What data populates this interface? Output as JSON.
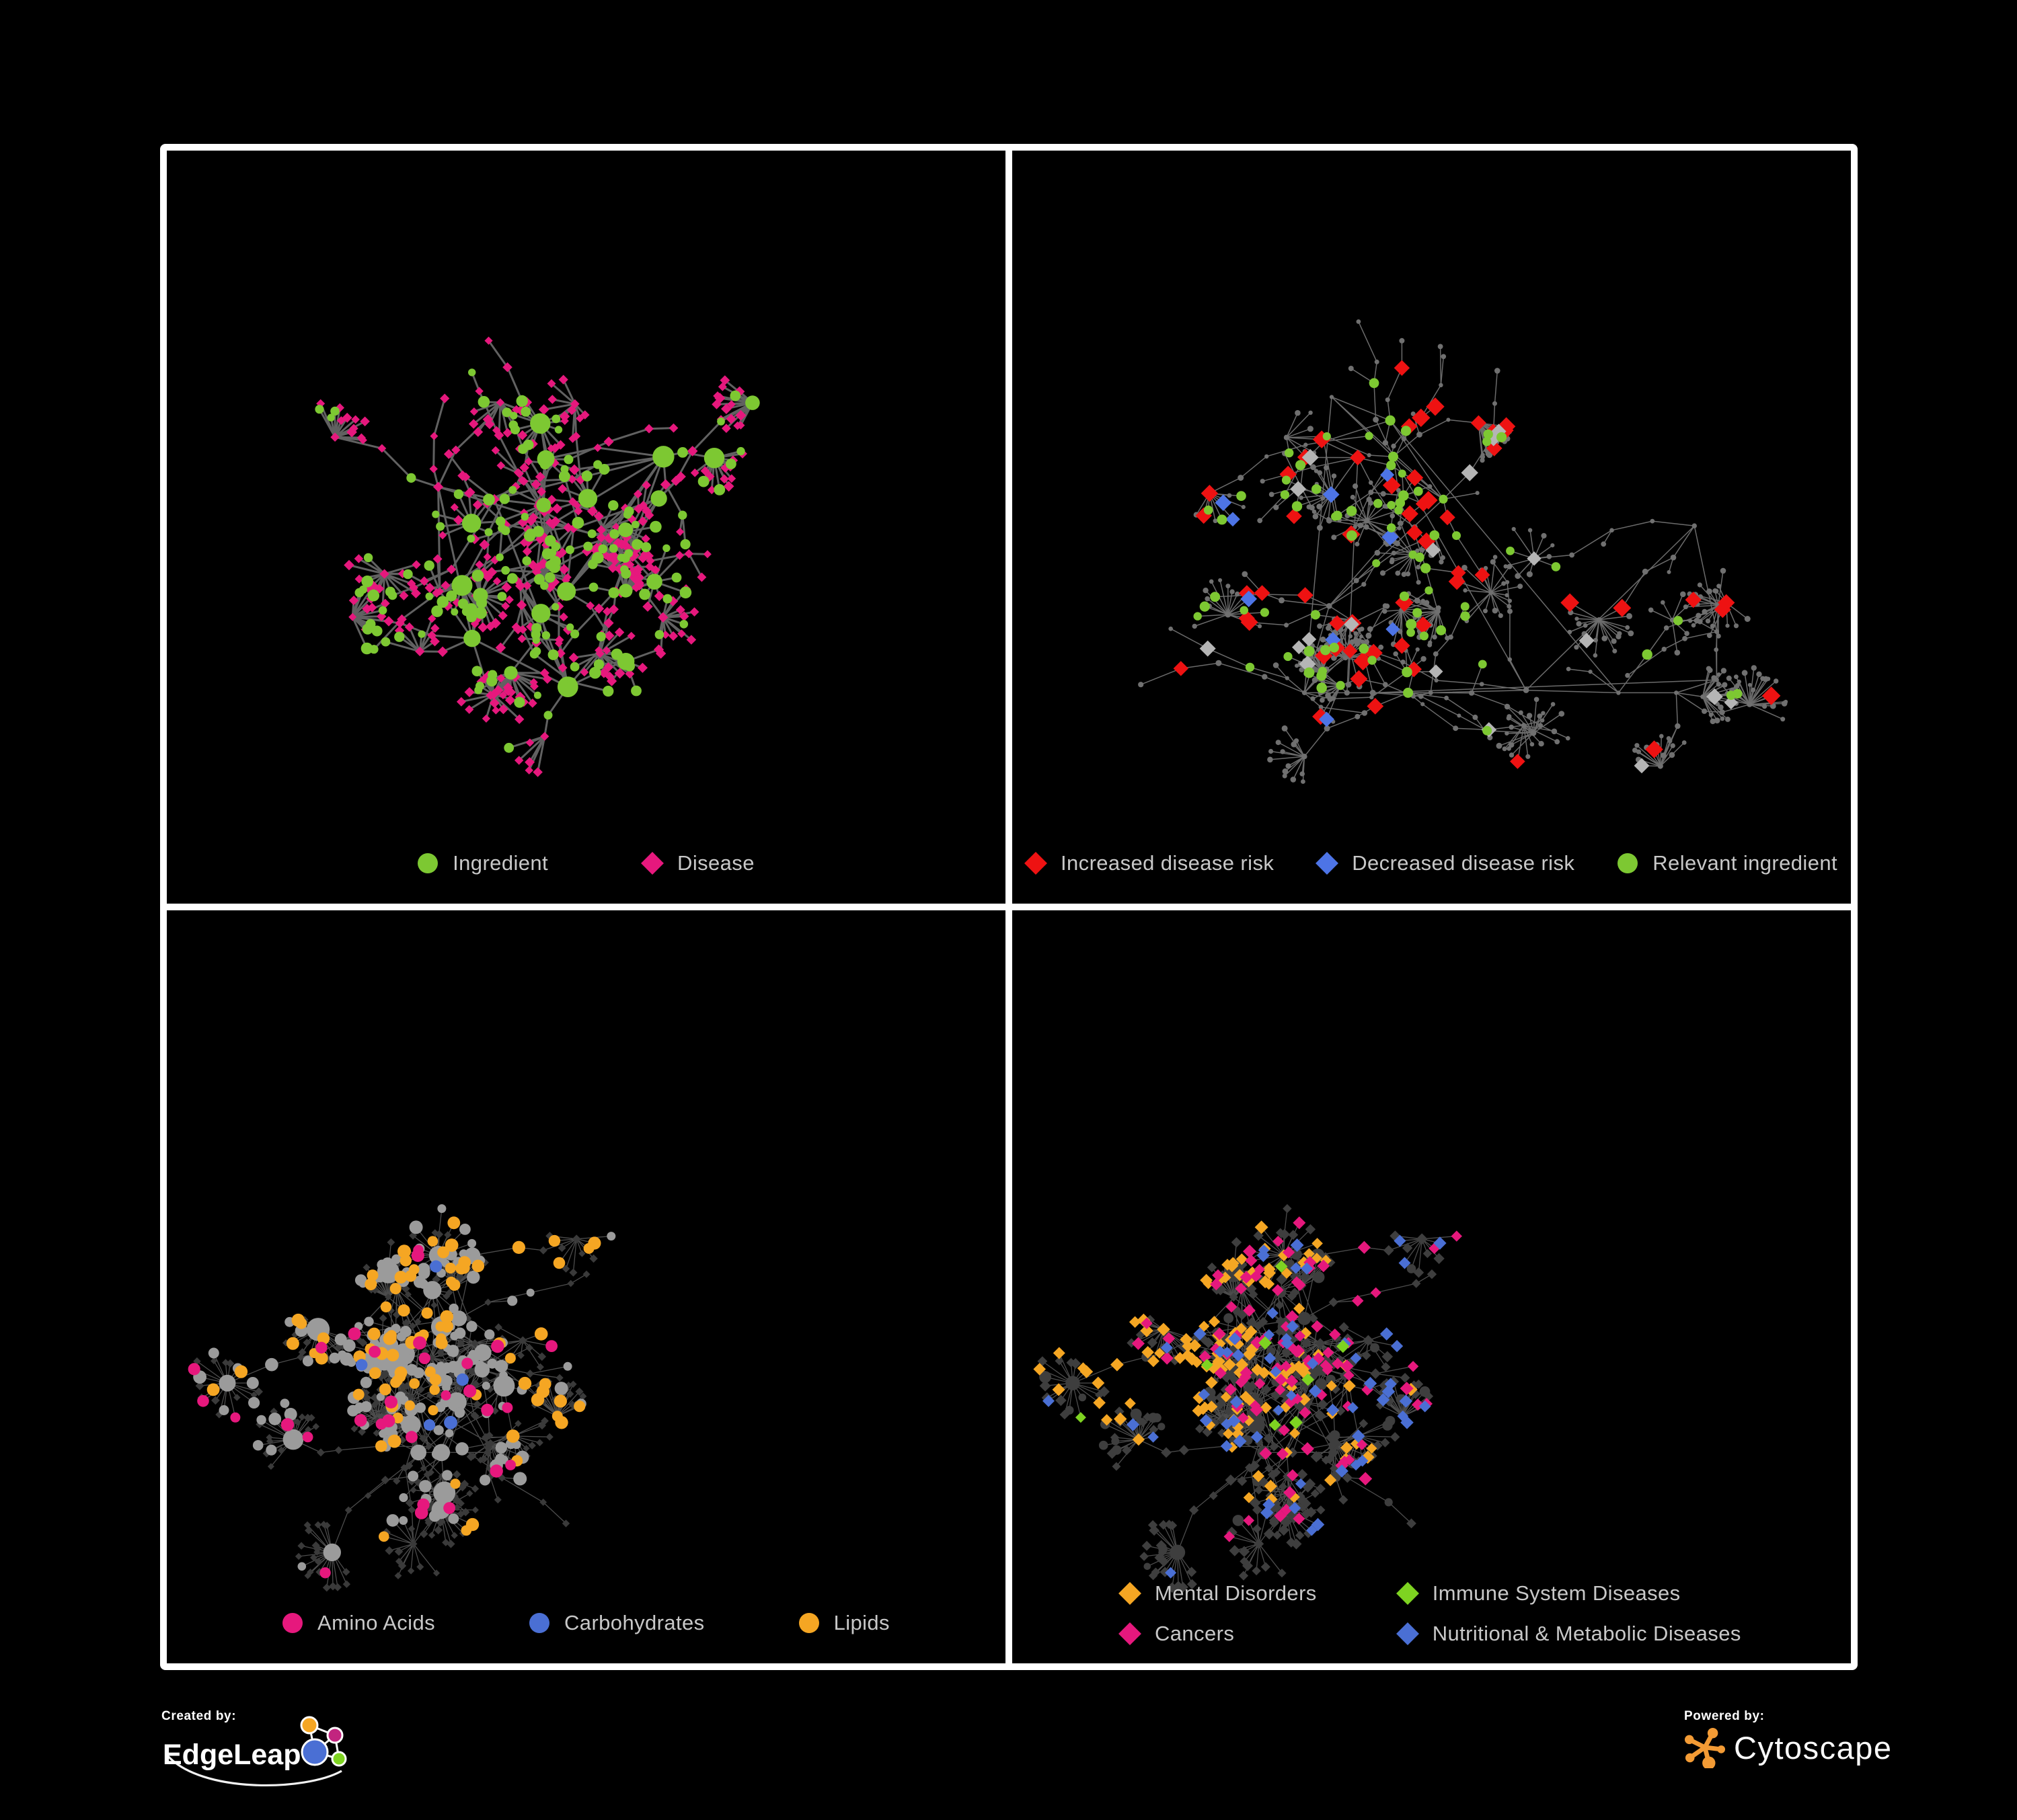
{
  "poster": {
    "background": "#000000",
    "frame_color": "#ffffff",
    "legend_text_color": "#c8c8c8"
  },
  "footer": {
    "created_by_label": "Created by:",
    "edgeleap_name": "EdgeLeap",
    "powered_by_label": "Powered by:",
    "cytoscape_name": "Cytoscape",
    "edgeleap_colors": {
      "hub_blue": "#4a6fd4",
      "orange": "#f5a623",
      "magenta": "#c2257f",
      "green": "#7ed321",
      "outline": "#ffffff"
    },
    "cytoscape_orange": "#f39b35"
  },
  "panels": [
    {
      "name": "ingredient-disease-network",
      "legend_columns": 2,
      "legend": [
        {
          "label": "Ingredient",
          "shape": "circle",
          "color": "#7dc832"
        },
        {
          "label": "Disease",
          "shape": "diamond",
          "color": "#e6187d"
        }
      ],
      "network": {
        "seed": 7,
        "anchors": 16,
        "max_nodes": 560,
        "burst_prob": 0.45,
        "burst_size": 12,
        "edge_color": "#6f6f6f",
        "edge_width": 3,
        "classes": [
          {
            "name": "disease",
            "shape": "diamond",
            "color": "#e6187d",
            "share": 0.66,
            "r": [
              6,
              8
            ]
          },
          {
            "name": "ingredient",
            "shape": "circle",
            "color": "#7dc832",
            "share": 0.34,
            "r": [
              5.5,
              9
            ],
            "hub": true
          }
        ]
      }
    },
    {
      "name": "disease-risk-network",
      "legend_columns": 3,
      "legend": [
        {
          "label": "Increased disease risk",
          "shape": "diamond",
          "color": "#ee1212"
        },
        {
          "label": "Decreased disease risk",
          "shape": "diamond",
          "color": "#4d74e6"
        },
        {
          "label": "Relevant ingredient",
          "shape": "circle",
          "color": "#7dc832"
        }
      ],
      "network": {
        "seed": 13,
        "anchors": 22,
        "max_nodes": 630,
        "burst_prob": 0.5,
        "burst_size": 20,
        "edge_color": "#7a7a7a",
        "edge_width": 1.5,
        "classes": [
          {
            "name": "other-node",
            "shape": "circle",
            "color": "#707070",
            "share": 0.83,
            "r": [
              3,
              4.5
            ]
          },
          {
            "name": "increased-risk",
            "shape": "diamond",
            "color": "#ee1212",
            "share": 0.055,
            "r": [
              11,
              14
            ],
            "focus": [
              0.42,
              0.38,
              0.34,
              5
            ]
          },
          {
            "name": "decreased-risk",
            "shape": "diamond",
            "color": "#4d74e6",
            "share": 0.018,
            "r": [
              10,
              13
            ],
            "focus": [
              0.3,
              0.45,
              0.2,
              4
            ]
          },
          {
            "name": "no-effect",
            "shape": "diamond",
            "color": "#b5b5b5",
            "share": 0.022,
            "r": [
              10,
              13
            ],
            "focus": [
              0.45,
              0.42,
              0.3,
              3.5
            ]
          },
          {
            "name": "relevant-ingredient",
            "shape": "circle",
            "color": "#7dc832",
            "share": 0.075,
            "r": [
              6,
              8
            ],
            "focus": [
              0.35,
              0.4,
              0.32,
              4
            ]
          }
        ]
      }
    },
    {
      "name": "nutrient-class-network",
      "legend_columns": 3,
      "legend": [
        {
          "label": "Amino Acids",
          "shape": "circle",
          "color": "#e6187d"
        },
        {
          "label": "Carbohydrates",
          "shape": "circle",
          "color": "#4a6fd4"
        },
        {
          "label": "Lipids",
          "shape": "circle",
          "color": "#f5a623"
        }
      ],
      "network": {
        "seed": 21,
        "anchors": 19,
        "max_nodes": 690,
        "burst_prob": 0.52,
        "burst_size": 17,
        "edge_color": "#575757",
        "edge_width": 1.3,
        "classes": [
          {
            "name": "disease-dim",
            "shape": "diamond",
            "color": "#3a3a3a",
            "share": 0.58,
            "r": [
              5,
              6.5
            ]
          },
          {
            "name": "ingredient-dim",
            "shape": "circle",
            "color": "#9b9b9b",
            "share": 0.17,
            "r": [
              6,
              10
            ],
            "hub": true,
            "focus": [
              0.22,
              0.38,
              0.38,
              2.5
            ]
          },
          {
            "name": "lipids",
            "shape": "circle",
            "color": "#f5a623",
            "share": 0.1,
            "r": [
              7.5,
              10
            ],
            "focus": [
              0.4,
              0.28,
              0.26,
              6
            ]
          },
          {
            "name": "amino-acids",
            "shape": "circle",
            "color": "#e6187d",
            "share": 0.05,
            "r": [
              7.5,
              10
            ]
          },
          {
            "name": "carbohydrates",
            "shape": "circle",
            "color": "#4a6fd4",
            "share": 0.028,
            "r": [
              7.5,
              10
            ],
            "focus": [
              0.37,
              0.24,
              0.13,
              7
            ]
          }
        ]
      }
    },
    {
      "name": "disease-category-network",
      "legend_columns": 2,
      "legend": [
        {
          "label": "Mental Disorders",
          "shape": "diamond",
          "color": "#f5a623"
        },
        {
          "label": "Immune System Diseases",
          "shape": "diamond",
          "color": "#7ed321"
        },
        {
          "label": "Cancers",
          "shape": "diamond",
          "color": "#e6187d"
        },
        {
          "label": "Nutritional & Metabolic Diseases",
          "shape": "diamond",
          "color": "#4a6fd4"
        }
      ],
      "network": {
        "seed": 21,
        "anchors": 19,
        "max_nodes": 690,
        "burst_prob": 0.52,
        "burst_size": 17,
        "edge_color": "#575757",
        "edge_width": 1.3,
        "classes": [
          {
            "name": "disease-dim",
            "shape": "diamond",
            "color": "#3e3e3e",
            "share": 0.52,
            "r": [
              6.5,
              8.5
            ]
          },
          {
            "name": "ingredient-dim",
            "shape": "circle",
            "color": "#3e3e3e",
            "share": 0.12,
            "r": [
              5,
              9
            ],
            "hub": true
          },
          {
            "name": "mental-disorders",
            "shape": "diamond",
            "color": "#f5a623",
            "share": 0.07,
            "r": [
              8,
              10
            ],
            "focus": [
              0.16,
              0.5,
              0.18,
              9
            ]
          },
          {
            "name": "cancers",
            "shape": "diamond",
            "color": "#e6187d",
            "share": 0.05,
            "r": [
              8,
              10
            ],
            "focus": [
              0.44,
              0.55,
              0.2,
              6
            ]
          },
          {
            "name": "nutritional-metabolic",
            "shape": "diamond",
            "color": "#4a6fd4",
            "share": 0.085,
            "r": [
              8,
              10
            ],
            "focus": [
              0.72,
              0.48,
              0.36,
              4
            ]
          },
          {
            "name": "immune-system",
            "shape": "diamond",
            "color": "#7ed321",
            "share": 0.013,
            "r": [
              8,
              10
            ]
          }
        ]
      }
    }
  ]
}
